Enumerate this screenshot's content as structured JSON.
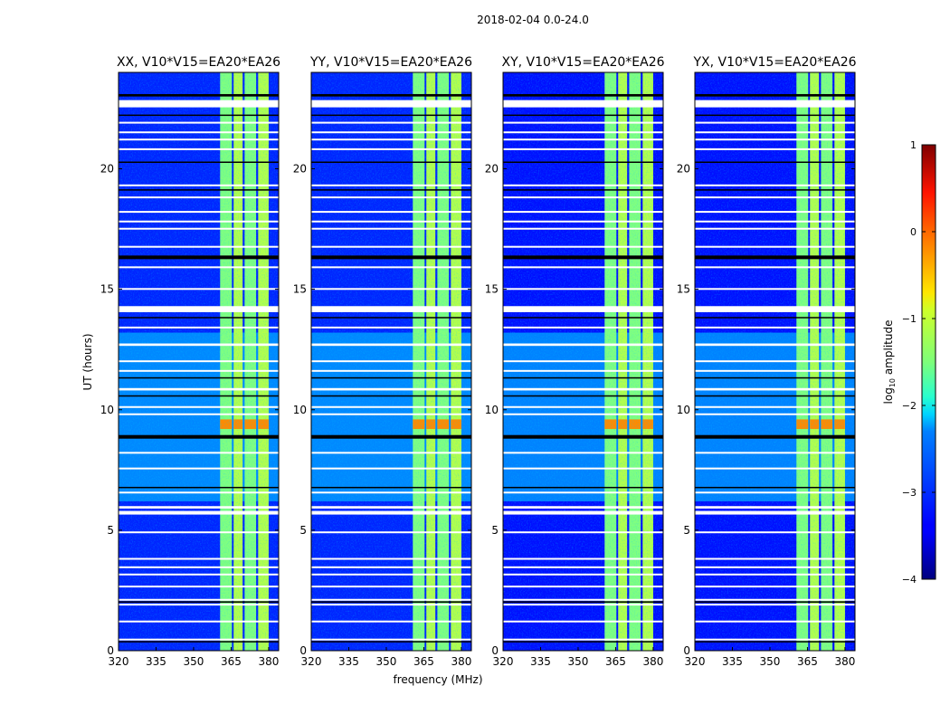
{
  "chart_data": {
    "type": "heatmap",
    "suptitle": "2018-02-04 0.0-24.0",
    "xlabel": "frequency (MHz)",
    "ylabel": "UT (hours)",
    "xlim": [
      320,
      384
    ],
    "ylim": [
      0,
      24
    ],
    "xticks": [
      "320",
      "335",
      "350",
      "365",
      "380"
    ],
    "yticks": [
      "0",
      "5",
      "10",
      "15",
      "20"
    ],
    "colorbar": {
      "label": "log10 amplitude",
      "label_main": "log",
      "label_sub": "10",
      "label_rest": " amplitude",
      "range": [
        -4,
        1
      ],
      "ticks": [
        "−4",
        "−3",
        "−2",
        "−1",
        "0",
        "1"
      ],
      "colormap": "jet"
    },
    "panels": [
      {
        "title": "XX, V10*V15=EA20*EA26",
        "background_log_amp": -3.2
      },
      {
        "title": "YY, V10*V15=EA20*EA26",
        "background_log_amp": -3.2
      },
      {
        "title": "XY, V10*V15=EA20*EA26",
        "background_log_amp": -3.3
      },
      {
        "title": "YX, V10*V15=EA20*EA26",
        "background_log_amp": -3.3
      }
    ],
    "bright_channels_mhz": [
      [
        360.6,
        365.3
      ],
      [
        366.0,
        369.6
      ],
      [
        370.4,
        375.0
      ],
      [
        375.8,
        380.0
      ]
    ],
    "bright_channel_log_amp": -1.4,
    "elevated_background_hours": [
      [
        6.2,
        13.2
      ]
    ],
    "elevated_background_log_amp": -2.5,
    "rfi_burst_hours": [
      [
        9.2,
        9.6
      ]
    ],
    "rfi_burst_log_amp": -0.3,
    "flagged_white_hours": [
      [
        22.55,
        22.85
      ],
      [
        21.9,
        21.95
      ],
      [
        21.5,
        21.55
      ],
      [
        21.2,
        21.25
      ],
      [
        20.8,
        20.85
      ],
      [
        19.3,
        19.35
      ],
      [
        18.8,
        18.85
      ],
      [
        18.2,
        18.25
      ],
      [
        17.8,
        17.85
      ],
      [
        17.5,
        17.55
      ],
      [
        16.75,
        16.8
      ],
      [
        15.9,
        15.95
      ],
      [
        15.0,
        15.05
      ],
      [
        14.05,
        14.3
      ],
      [
        13.4,
        13.45
      ],
      [
        12.65,
        12.75
      ],
      [
        12.0,
        12.05
      ],
      [
        11.6,
        11.65
      ],
      [
        10.8,
        10.9
      ],
      [
        10.1,
        10.15
      ],
      [
        9.8,
        9.85
      ],
      [
        8.2,
        8.25
      ],
      [
        7.55,
        7.6
      ],
      [
        6.55,
        6.6
      ],
      [
        5.9,
        6.0
      ],
      [
        5.65,
        5.8
      ],
      [
        4.9,
        4.95
      ],
      [
        3.8,
        3.85
      ],
      [
        3.45,
        3.5
      ],
      [
        3.15,
        3.2
      ],
      [
        2.65,
        2.7
      ],
      [
        2.1,
        2.15
      ],
      [
        1.9,
        1.95
      ],
      [
        1.2,
        1.25
      ],
      [
        0.45,
        0.5
      ]
    ],
    "flagged_black_hours": [
      [
        23.0,
        23.1
      ],
      [
        22.2,
        22.25
      ],
      [
        20.25,
        20.3
      ],
      [
        19.1,
        19.15
      ],
      [
        16.25,
        16.4
      ],
      [
        13.8,
        13.85
      ],
      [
        11.3,
        11.35
      ],
      [
        10.55,
        10.6
      ],
      [
        8.8,
        8.95
      ],
      [
        6.75,
        6.8
      ],
      [
        2.0,
        2.05
      ],
      [
        0.35,
        0.4
      ]
    ]
  }
}
